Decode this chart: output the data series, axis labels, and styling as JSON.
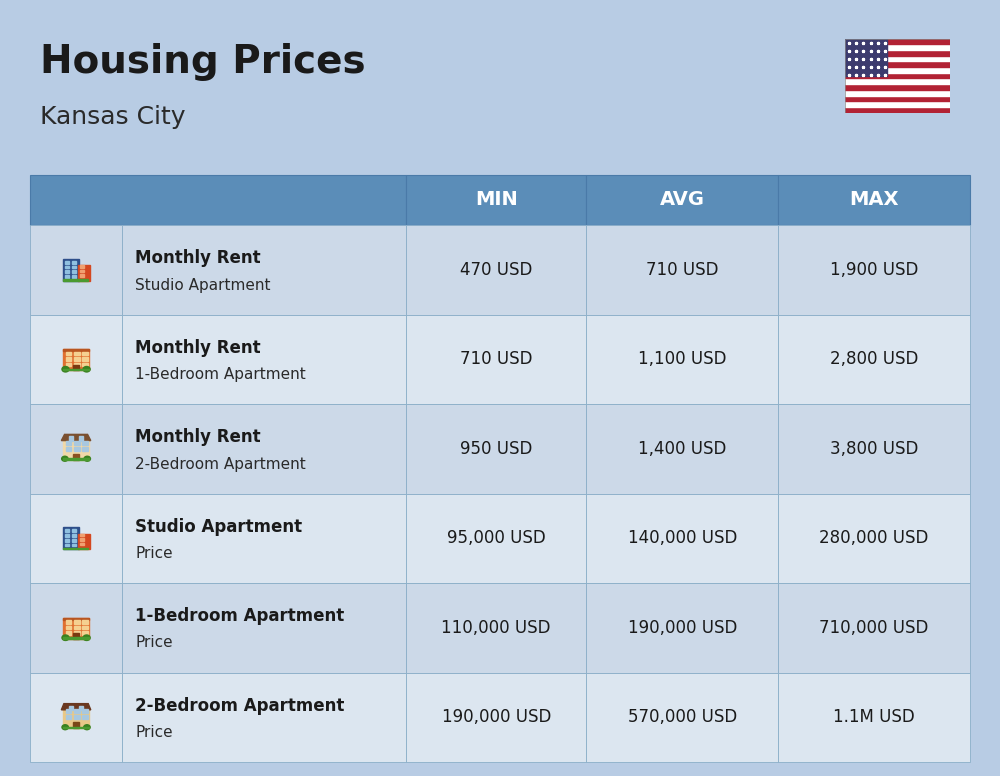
{
  "title": "Housing Prices",
  "subtitle": "Kansas City",
  "bg_color": "#b8cce4",
  "header_color": "#5b8db8",
  "header_text_color": "#ffffff",
  "row_colors": [
    "#ccd9e8",
    "#dce6f0"
  ],
  "rows": [
    {
      "icon_type": "studio_blue",
      "bold_text": "Monthly Rent",
      "normal_text": "Studio Apartment",
      "min": "470 USD",
      "avg": "710 USD",
      "max": "1,900 USD"
    },
    {
      "icon_type": "apt_orange",
      "bold_text": "Monthly Rent",
      "normal_text": "1-Bedroom Apartment",
      "min": "710 USD",
      "avg": "1,100 USD",
      "max": "2,800 USD"
    },
    {
      "icon_type": "apt_tan",
      "bold_text": "Monthly Rent",
      "normal_text": "2-Bedroom Apartment",
      "min": "950 USD",
      "avg": "1,400 USD",
      "max": "3,800 USD"
    },
    {
      "icon_type": "studio_blue",
      "bold_text": "Studio Apartment",
      "normal_text": "Price",
      "min": "95,000 USD",
      "avg": "140,000 USD",
      "max": "280,000 USD"
    },
    {
      "icon_type": "apt_orange",
      "bold_text": "1-Bedroom Apartment",
      "normal_text": "Price",
      "min": "110,000 USD",
      "avg": "190,000 USD",
      "max": "710,000 USD"
    },
    {
      "icon_type": "apt_brown",
      "bold_text": "2-Bedroom Apartment",
      "normal_text": "Price",
      "min": "190,000 USD",
      "avg": "570,000 USD",
      "max": "1.1M USD"
    }
  ]
}
